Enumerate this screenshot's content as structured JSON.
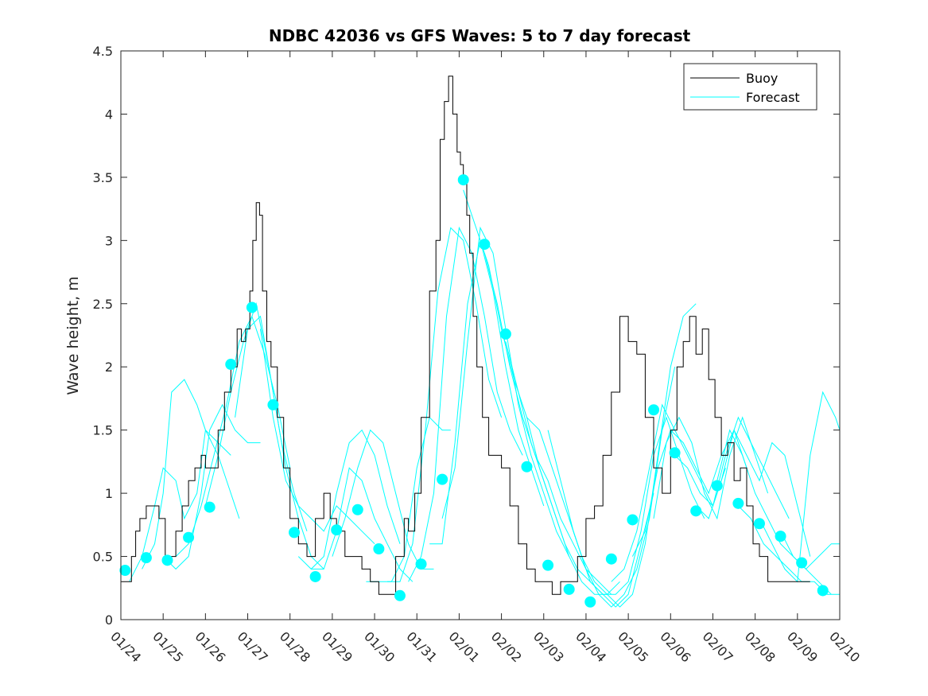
{
  "chart_data": {
    "type": "line",
    "title": "NDBC 42036 vs GFS Waves: 5 to 7 day forecast",
    "xlabel": "",
    "ylabel": "Wave height, m",
    "xlim": [
      0,
      17
    ],
    "ylim": [
      0,
      4.5
    ],
    "yticks": [
      0,
      0.5,
      1,
      1.5,
      2,
      2.5,
      3,
      3.5,
      4,
      4.5
    ],
    "ytick_labels": [
      "0",
      "0.5",
      "1",
      "1.5",
      "2",
      "2.5",
      "3",
      "3.5",
      "4",
      "4.5"
    ],
    "xtick_labels": [
      "01/24",
      "01/25",
      "01/26",
      "01/27",
      "01/28",
      "01/29",
      "01/30",
      "01/31",
      "02/01",
      "02/02",
      "02/03",
      "02/04",
      "02/05",
      "02/06",
      "02/07",
      "02/08",
      "02/09",
      "02/10"
    ],
    "legend": {
      "position": "top-right",
      "entries": [
        "Buoy",
        "Forecast"
      ]
    },
    "colors": {
      "buoy": "#000000",
      "forecast": "#00ffff",
      "axis": "#262626"
    },
    "buoy": {
      "name": "Buoy",
      "x": [
        0,
        0.1,
        0.25,
        0.35,
        0.45,
        0.6,
        0.75,
        0.9,
        1.0,
        1.05,
        1.15,
        1.3,
        1.45,
        1.6,
        1.75,
        1.9,
        2.0,
        2.15,
        2.3,
        2.45,
        2.6,
        2.75,
        2.85,
        2.95,
        3.05,
        3.12,
        3.2,
        3.28,
        3.35,
        3.45,
        3.55,
        3.7,
        3.85,
        4.0,
        4.2,
        4.4,
        4.6,
        4.8,
        4.95,
        5.1,
        5.3,
        5.5,
        5.7,
        5.9,
        6.1,
        6.3,
        6.5,
        6.7,
        6.8,
        6.95,
        7.1,
        7.3,
        7.45,
        7.55,
        7.65,
        7.75,
        7.85,
        7.95,
        8.03,
        8.1,
        8.18,
        8.25,
        8.33,
        8.42,
        8.55,
        8.7,
        8.85,
        9.0,
        9.2,
        9.4,
        9.6,
        9.8,
        10.0,
        10.2,
        10.4,
        10.6,
        10.8,
        11.0,
        11.2,
        11.4,
        11.6,
        11.8,
        12.0,
        12.2,
        12.4,
        12.6,
        12.8,
        13.0,
        13.15,
        13.3,
        13.45,
        13.6,
        13.75,
        13.9,
        14.05,
        14.2,
        14.35,
        14.5,
        14.65,
        14.8,
        14.95,
        15.1,
        15.3,
        15.5,
        15.7,
        15.9,
        16.1,
        16.3
      ],
      "values": [
        0.3,
        0.3,
        0.5,
        0.7,
        0.8,
        0.9,
        0.9,
        0.8,
        0.8,
        0.5,
        0.5,
        0.7,
        0.9,
        1.1,
        1.2,
        1.3,
        1.2,
        1.2,
        1.5,
        1.8,
        2.0,
        2.3,
        2.2,
        2.3,
        2.6,
        3.0,
        3.3,
        3.2,
        2.6,
        2.2,
        2.0,
        1.6,
        1.2,
        0.8,
        0.6,
        0.5,
        0.8,
        1.0,
        0.8,
        0.7,
        0.5,
        0.5,
        0.4,
        0.3,
        0.2,
        0.2,
        0.5,
        0.8,
        0.7,
        1.0,
        1.6,
        2.6,
        3.0,
        3.8,
        4.1,
        4.3,
        4.0,
        3.7,
        3.6,
        3.5,
        3.2,
        2.9,
        2.4,
        2.0,
        1.6,
        1.3,
        1.3,
        1.2,
        0.9,
        0.6,
        0.4,
        0.3,
        0.3,
        0.2,
        0.3,
        0.3,
        0.5,
        0.8,
        0.9,
        1.3,
        1.8,
        2.4,
        2.2,
        2.1,
        1.6,
        1.2,
        1.0,
        1.5,
        2.0,
        2.2,
        2.4,
        2.1,
        2.3,
        1.9,
        1.6,
        1.3,
        1.4,
        1.1,
        1.2,
        0.9,
        0.6,
        0.5,
        0.3,
        0.3,
        0.3,
        0.3,
        0.3,
        0.3
      ]
    },
    "forecast_dots": {
      "name": "Forecast",
      "x": [
        0.1,
        0.6,
        1.1,
        1.6,
        2.1,
        2.6,
        3.1,
        3.6,
        4.1,
        4.6,
        5.1,
        5.6,
        6.1,
        6.6,
        7.1,
        7.6,
        8.1,
        8.6,
        9.1,
        9.6,
        10.1,
        10.6,
        11.1,
        11.6,
        12.1,
        12.6,
        13.1,
        13.6,
        14.1,
        14.6,
        15.1,
        15.6,
        16.1,
        16.6
      ],
      "values": [
        0.39,
        0.49,
        0.47,
        0.65,
        0.89,
        2.02,
        2.47,
        1.7,
        0.69,
        0.34,
        0.71,
        0.87,
        0.56,
        0.19,
        0.44,
        1.11,
        3.48,
        2.97,
        2.26,
        1.21,
        0.43,
        0.24,
        0.14,
        0.48,
        0.79,
        1.66,
        1.32,
        0.86,
        1.06,
        0.92,
        0.76,
        0.66,
        0.45,
        0.23
      ]
    },
    "forecast_runs": [
      {
        "x": [
          0.2,
          0.5,
          0.8,
          1.0,
          1.3,
          1.5,
          1.8,
          2.0,
          2.3,
          2.6
        ],
        "values": [
          0.3,
          0.5,
          0.9,
          1.2,
          1.1,
          0.8,
          1.0,
          1.5,
          1.4,
          1.3
        ]
      },
      {
        "x": [
          0.5,
          0.8,
          1.0,
          1.2,
          1.5,
          1.8,
          2.0,
          2.3,
          2.6,
          2.8
        ],
        "values": [
          0.4,
          0.6,
          1.0,
          1.8,
          1.9,
          1.7,
          1.5,
          1.3,
          1.0,
          0.8
        ]
      },
      {
        "x": [
          1.0,
          1.3,
          1.6,
          1.9,
          2.1,
          2.4,
          2.7,
          3.0,
          3.3
        ],
        "values": [
          0.5,
          0.4,
          0.5,
          1.0,
          1.5,
          1.7,
          1.5,
          1.4,
          1.4
        ]
      },
      {
        "x": [
          1.3,
          1.6,
          1.9,
          2.2,
          2.5,
          2.8,
          3.1,
          3.4,
          3.7,
          4.0
        ],
        "values": [
          0.5,
          0.6,
          0.9,
          1.3,
          1.7,
          2.2,
          2.4,
          2.1,
          1.7,
          1.2
        ]
      },
      {
        "x": [
          2.0,
          2.3,
          2.6,
          2.9,
          3.2,
          3.5,
          3.8,
          4.1,
          4.4
        ],
        "values": [
          0.9,
          1.3,
          1.8,
          2.2,
          2.5,
          2.0,
          1.4,
          1.0,
          0.7
        ]
      },
      {
        "x": [
          2.7,
          3.0,
          3.3,
          3.6,
          3.9,
          4.2,
          4.5,
          4.8
        ],
        "values": [
          1.6,
          2.3,
          2.4,
          1.8,
          1.2,
          0.8,
          0.5,
          0.4
        ]
      },
      {
        "x": [
          3.3,
          3.6,
          3.9,
          4.2,
          4.5,
          4.8,
          5.1,
          5.4,
          5.7,
          6.0
        ],
        "values": [
          2.3,
          1.6,
          1.1,
          0.9,
          0.8,
          0.7,
          0.9,
          0.8,
          0.7,
          0.6
        ]
      },
      {
        "x": [
          4.2,
          4.5,
          4.8,
          5.1,
          5.4,
          5.7,
          6.0,
          6.3,
          6.6
        ],
        "values": [
          0.5,
          0.4,
          0.5,
          1.0,
          1.4,
          1.5,
          1.3,
          0.9,
          0.6
        ]
      },
      {
        "x": [
          4.5,
          4.8,
          5.1,
          5.4,
          5.7,
          6.0,
          6.3,
          6.6,
          6.9
        ],
        "values": [
          0.4,
          0.4,
          0.7,
          1.2,
          1.1,
          0.8,
          0.6,
          0.4,
          0.3
        ]
      },
      {
        "x": [
          5.0,
          5.3,
          5.6,
          5.9,
          6.2,
          6.5,
          6.8,
          7.1,
          7.4
        ],
        "values": [
          0.5,
          0.8,
          1.2,
          1.5,
          1.4,
          1.0,
          0.6,
          0.4,
          0.4
        ]
      },
      {
        "x": [
          5.8,
          6.1,
          6.4,
          6.7,
          7.0,
          7.3,
          7.6,
          7.8
        ],
        "values": [
          0.3,
          0.3,
          0.3,
          0.5,
          1.2,
          1.6,
          1.5,
          1.5
        ]
      },
      {
        "x": [
          6.3,
          6.6,
          6.9,
          7.2,
          7.5,
          7.8,
          8.1,
          8.4,
          8.7,
          9.0
        ],
        "values": [
          0.3,
          0.3,
          0.6,
          1.5,
          2.6,
          3.1,
          3.0,
          2.5,
          1.9,
          1.6
        ]
      },
      {
        "x": [
          6.8,
          7.1,
          7.4,
          7.7,
          8.0,
          8.3,
          8.6,
          8.9,
          9.2,
          9.5
        ],
        "values": [
          0.3,
          0.5,
          1.0,
          2.4,
          3.1,
          2.9,
          2.4,
          1.8,
          1.5,
          1.3
        ]
      },
      {
        "x": [
          7.3,
          7.6,
          7.9,
          8.2,
          8.5,
          8.8,
          9.1,
          9.4,
          9.7,
          10.0
        ],
        "values": [
          0.6,
          0.6,
          1.4,
          2.5,
          3.0,
          2.6,
          2.0,
          1.5,
          1.2,
          0.9
        ]
      },
      {
        "x": [
          7.6,
          7.9,
          8.2,
          8.5,
          8.8,
          9.1,
          9.4,
          9.7,
          10.0,
          10.3,
          10.6
        ],
        "values": [
          0.8,
          1.2,
          2.2,
          3.1,
          2.9,
          2.3,
          1.7,
          1.3,
          1.0,
          0.7,
          0.5
        ]
      },
      {
        "x": [
          8.1,
          8.4,
          8.7,
          9.0,
          9.3,
          9.6,
          9.9,
          10.2,
          10.5,
          10.8,
          11.1
        ],
        "values": [
          3.4,
          3.1,
          2.8,
          2.3,
          1.9,
          1.6,
          1.2,
          0.9,
          0.6,
          0.4,
          0.3
        ]
      },
      {
        "x": [
          8.6,
          8.9,
          9.2,
          9.5,
          9.8,
          10.1,
          10.4,
          10.7,
          11.0,
          11.3,
          11.6
        ],
        "values": [
          2.9,
          2.5,
          2.0,
          1.6,
          1.3,
          1.1,
          0.8,
          0.6,
          0.4,
          0.3,
          0.2
        ]
      },
      {
        "x": [
          9.1,
          9.4,
          9.7,
          10.0,
          10.3,
          10.6,
          10.9,
          11.2,
          11.5,
          11.8
        ],
        "values": [
          2.2,
          1.8,
          1.4,
          1.1,
          0.8,
          0.5,
          0.3,
          0.2,
          0.2,
          0.3
        ]
      },
      {
        "x": [
          9.6,
          9.9,
          10.2,
          10.5,
          10.8,
          11.1,
          11.4,
          11.7,
          12.0,
          12.3,
          12.6
        ],
        "values": [
          1.6,
          1.5,
          1.2,
          0.9,
          0.6,
          0.3,
          0.2,
          0.1,
          0.2,
          0.6,
          1.0
        ]
      },
      {
        "x": [
          10.1,
          10.4,
          10.7,
          11.0,
          11.3,
          11.6,
          11.9,
          12.2,
          12.5,
          12.8,
          13.1
        ],
        "values": [
          1.5,
          1.1,
          0.7,
          0.4,
          0.2,
          0.1,
          0.2,
          0.4,
          0.8,
          1.5,
          2.0
        ]
      },
      {
        "x": [
          10.6,
          10.9,
          11.2,
          11.5,
          11.8,
          12.1,
          12.4,
          12.7,
          13.0,
          13.3,
          13.6
        ],
        "values": [
          0.8,
          0.5,
          0.3,
          0.2,
          0.1,
          0.2,
          0.6,
          1.3,
          2.0,
          2.4,
          2.5
        ]
      },
      {
        "x": [
          11.1,
          11.4,
          11.7,
          12.0,
          12.3,
          12.6,
          12.9,
          13.2,
          13.5,
          13.8
        ],
        "values": [
          0.3,
          0.2,
          0.2,
          0.3,
          0.7,
          1.3,
          1.6,
          1.3,
          1.0,
          0.8
        ]
      },
      {
        "x": [
          11.6,
          11.9,
          12.2,
          12.5,
          12.8,
          13.1,
          13.4,
          13.7,
          14.0,
          14.3
        ],
        "values": [
          0.3,
          0.4,
          0.7,
          1.2,
          1.7,
          1.5,
          1.3,
          1.1,
          0.9,
          1.2
        ]
      },
      {
        "x": [
          12.1,
          12.4,
          12.7,
          13.0,
          13.3,
          13.6,
          13.9,
          14.2,
          14.5,
          14.8
        ],
        "values": [
          0.5,
          0.7,
          1.2,
          1.5,
          1.4,
          1.2,
          1.0,
          1.3,
          1.5,
          1.2
        ]
      },
      {
        "x": [
          12.6,
          12.9,
          13.2,
          13.5,
          13.8,
          14.1,
          14.4,
          14.7,
          15.0,
          15.3
        ],
        "values": [
          0.8,
          1.4,
          1.6,
          1.4,
          1.0,
          0.8,
          1.3,
          1.6,
          1.3,
          1.0
        ]
      },
      {
        "x": [
          13.1,
          13.4,
          13.7,
          14.0,
          14.3,
          14.6,
          14.9,
          15.2,
          15.5,
          15.8
        ],
        "values": [
          1.3,
          1.2,
          1.0,
          0.9,
          1.3,
          1.6,
          1.4,
          1.2,
          1.0,
          0.8
        ]
      },
      {
        "x": [
          13.6,
          13.9,
          14.2,
          14.5,
          14.8,
          15.1,
          15.4,
          15.7,
          16.0,
          16.3
        ],
        "values": [
          0.9,
          0.8,
          1.1,
          1.5,
          1.3,
          1.1,
          1.4,
          1.3,
          0.9,
          0.5
        ]
      },
      {
        "x": [
          14.1,
          14.4,
          14.7,
          15.0,
          15.3,
          15.6,
          15.9,
          16.2,
          16.5,
          16.8
        ],
        "values": [
          1.1,
          1.5,
          1.3,
          1.0,
          0.8,
          0.6,
          0.5,
          0.4,
          0.3,
          0.2
        ]
      },
      {
        "x": [
          14.6,
          14.9,
          15.2,
          15.5,
          15.8,
          16.1,
          16.4,
          16.7,
          17.0
        ],
        "values": [
          0.9,
          0.8,
          0.6,
          0.5,
          0.4,
          0.3,
          0.3,
          0.2,
          0.2
        ]
      },
      {
        "x": [
          15.1,
          15.4,
          15.7,
          16.0,
          16.3,
          16.6,
          16.9,
          17.0
        ],
        "values": [
          0.8,
          0.6,
          0.4,
          0.3,
          1.3,
          1.8,
          1.6,
          1.5
        ]
      },
      {
        "x": [
          15.6,
          15.9,
          16.2,
          16.5,
          16.8,
          17.0
        ],
        "values": [
          0.7,
          0.5,
          0.4,
          0.5,
          0.6,
          0.6
        ]
      }
    ]
  }
}
